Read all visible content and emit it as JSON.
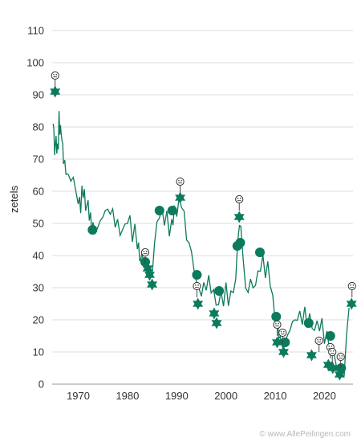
{
  "chart_data": {
    "type": "line",
    "title": "",
    "xlabel": "",
    "ylabel": "zetels",
    "xlim": [
      1964.7,
      2025.8
    ],
    "ylim": [
      0,
      110
    ],
    "yticks": [
      0,
      10,
      20,
      30,
      40,
      50,
      60,
      70,
      80,
      90,
      100,
      110
    ],
    "xticks": [
      1970,
      1980,
      1990,
      2000,
      2010,
      2020
    ],
    "grid": true,
    "legend": "none",
    "line_color": "#0c7a5c",
    "series": [
      {
        "x": [
          1964.9,
          1965.2,
          1965.5,
          1965.8,
          1966.1,
          1966.4,
          1966.7,
          1967.0,
          1967.5,
          1968.0,
          1969.0,
          1970.0,
          1970.5,
          1971.0,
          1971.5,
          1972.0,
          1972.5,
          1973.0,
          1974.0,
          1975.0,
          1976.0,
          1977.0,
          1978.0,
          1979.0,
          1980.0,
          1981.0,
          1982.0,
          1982.5,
          1983.0,
          1983.5,
          1984.0,
          1985.0,
          1986.0,
          1987.0,
          1988.0,
          1989.0,
          1989.5,
          1990.0,
          1991.0,
          1992.0,
          1993.0,
          1994.0,
          1995.0,
          1996.0,
          1997.0,
          1998.0,
          1999.0,
          2000.0,
          2001.0,
          2002.0,
          2002.5,
          2003.0,
          2004.0,
          2005.0,
          2006.0,
          2007.0,
          2008.0,
          2009.0,
          2010.0,
          2010.5,
          2011.0,
          2012.0,
          2013.0,
          2014.0,
          2015.0,
          2016.0,
          2017.0,
          2018.0,
          2019.0,
          2020.0,
          2021.0,
          2022.0,
          2023.0,
          2024.0,
          2025.0
        ],
        "values": [
          81,
          70,
          75,
          72,
          82,
          78,
          74,
          68,
          66,
          67,
          67,
          59,
          56,
          60,
          55,
          57,
          52,
          48,
          46,
          49,
          52,
          53,
          51,
          49,
          52,
          47,
          45,
          41,
          43,
          38,
          36,
          32,
          48,
          52,
          51,
          49,
          54,
          52,
          56,
          47,
          44,
          35,
          30,
          31,
          29,
          24,
          27,
          29,
          26,
          30,
          44,
          48,
          30,
          34,
          33,
          38,
          36,
          33,
          21,
          22,
          14,
          11,
          14,
          17,
          20,
          22,
          21,
          17,
          18,
          15,
          14,
          12,
          6,
          4,
          24
        ]
      }
    ],
    "stars": [
      {
        "x": 1965.3,
        "y": 91
      },
      {
        "x": 1984.1,
        "y": 36
      },
      {
        "x": 1984.5,
        "y": 34
      },
      {
        "x": 1985.0,
        "y": 31
      },
      {
        "x": 1990.7,
        "y": 58
      },
      {
        "x": 1994.3,
        "y": 25
      },
      {
        "x": 1997.6,
        "y": 22
      },
      {
        "x": 1998.1,
        "y": 19
      },
      {
        "x": 2002.7,
        "y": 52
      },
      {
        "x": 2010.4,
        "y": 13
      },
      {
        "x": 2011.7,
        "y": 10
      },
      {
        "x": 2017.4,
        "y": 9
      },
      {
        "x": 2020.8,
        "y": 6
      },
      {
        "x": 2021.7,
        "y": 5
      },
      {
        "x": 2023.1,
        "y": 3
      },
      {
        "x": 2025.5,
        "y": 25
      }
    ],
    "dots": [
      {
        "x": 1972.9,
        "y": 48
      },
      {
        "x": 1983.6,
        "y": 38
      },
      {
        "x": 1986.5,
        "y": 54
      },
      {
        "x": 1989.1,
        "y": 54
      },
      {
        "x": 1994.1,
        "y": 34
      },
      {
        "x": 1998.6,
        "y": 29
      },
      {
        "x": 2002.3,
        "y": 43
      },
      {
        "x": 2002.9,
        "y": 44
      },
      {
        "x": 2006.9,
        "y": 41
      },
      {
        "x": 2010.2,
        "y": 21
      },
      {
        "x": 2012.0,
        "y": 13
      },
      {
        "x": 2016.8,
        "y": 19
      },
      {
        "x": 2021.2,
        "y": 15
      },
      {
        "x": 2023.4,
        "y": 5
      }
    ],
    "faces": [
      {
        "x": 1965.3,
        "y": 96
      },
      {
        "x": 1983.6,
        "y": 41
      },
      {
        "x": 1990.7,
        "y": 63
      },
      {
        "x": 1994.1,
        "y": 30.5
      },
      {
        "x": 2002.7,
        "y": 57.5
      },
      {
        "x": 2010.4,
        "y": 18.5
      },
      {
        "x": 2011.5,
        "y": 16
      },
      {
        "x": 2018.9,
        "y": 13.5
      },
      {
        "x": 2021.2,
        "y": 11.5
      },
      {
        "x": 2021.6,
        "y": 10
      },
      {
        "x": 2023.3,
        "y": 8.5
      },
      {
        "x": 2025.6,
        "y": 30.5
      }
    ]
  },
  "credit": "© www.AllePeilingen.com"
}
